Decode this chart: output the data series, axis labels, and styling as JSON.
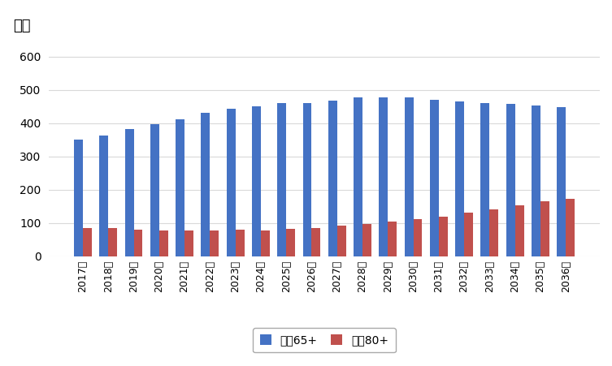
{
  "years": [
    "2017年",
    "2018年",
    "2019年",
    "2020年",
    "2021年",
    "2022年",
    "2023年",
    "2024年",
    "2025年",
    "2026年",
    "2027年",
    "2028年",
    "2029年",
    "2030年",
    "2031年",
    "2032年",
    "2033年",
    "2034年",
    "2035年",
    "2036年"
  ],
  "blue_values": [
    350,
    362,
    382,
    397,
    412,
    432,
    444,
    450,
    460,
    460,
    467,
    477,
    477,
    477,
    470,
    464,
    461,
    457,
    452,
    447
  ],
  "red_values": [
    85,
    85,
    80,
    77,
    78,
    78,
    79,
    78,
    81,
    85,
    93,
    98,
    105,
    112,
    120,
    131,
    141,
    154,
    164,
    173
  ],
  "blue_color": "#4472C4",
  "red_color": "#C0504D",
  "ylabel": "万人",
  "ylim_min": 0,
  "ylim_max": 660,
  "yticks": [
    0,
    100,
    200,
    300,
    400,
    500,
    600
  ],
  "legend_blue": "常住65+",
  "legend_red": "常住80+",
  "bg_color": "#FFFFFF",
  "grid_color": "#D9D9D9",
  "bar_width": 0.35
}
